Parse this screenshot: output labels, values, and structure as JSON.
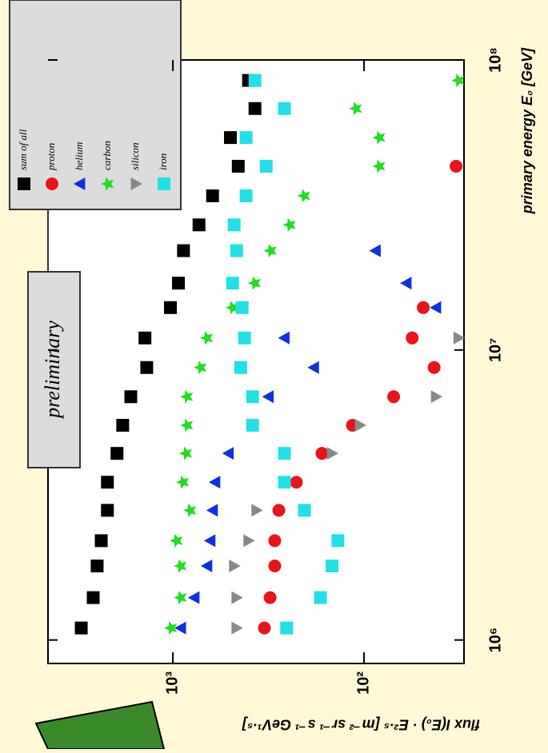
{
  "chart_data": {
    "type": "scatter",
    "x_label": "primary energy E₀ [GeV]",
    "y_label": "flux I(E₀) · E²·⁵ [m⁻² sr⁻¹ s⁻¹ GeV¹·⁵]",
    "annotation": "preliminary",
    "x_log": true,
    "y_log": true,
    "xlim": [
      830000,
      100000000
    ],
    "ylim": [
      30,
      4500
    ],
    "xticks": [
      {
        "value": 1000000,
        "label": "10⁶"
      },
      {
        "value": 10000000,
        "label": "10⁷"
      },
      {
        "value": 100000000,
        "label": "10⁸"
      }
    ],
    "yticks": [
      {
        "value": 100,
        "label": "10²"
      },
      {
        "value": 1000,
        "label": "10³"
      }
    ],
    "legend": "top-right",
    "x": [
      1100000,
      1400000,
      1800000,
      2200000,
      2800000,
      3500000,
      4400000,
      5500000,
      6900000,
      8700000,
      11000000,
      14000000,
      17000000,
      22000000,
      27000000,
      34000000,
      43000000,
      54000000,
      68000000,
      85000000
    ],
    "series": [
      {
        "name": "sum of all",
        "color": "#000000",
        "marker": "square",
        "values": [
          3015,
          2610,
          2490,
          2370,
          2200,
          2200,
          1960,
          1830,
          1660,
          1370,
          1400,
          1030,
          935,
          880,
          730,
          620,
          455,
          500,
          372,
          402
        ]
      },
      {
        "name": "proton",
        "color": "#e8141c",
        "marker": "circle",
        "values": [
          332,
          310,
          293,
          293,
          279,
          226,
          166,
          115,
          70,
          43,
          56,
          49,
          null,
          null,
          null,
          null,
          33,
          null,
          null,
          null
        ]
      },
      {
        "name": "helium",
        "color": "#1030e0",
        "marker": "triangle-up",
        "values": [
          908,
          772,
          662,
          637,
          619,
          601,
          511,
          null,
          316,
          183,
          261,
          42,
          60,
          87,
          null,
          null,
          null,
          null,
          null,
          null
        ]
      },
      {
        "name": "carbon",
        "color": "#22dd22",
        "marker": "star",
        "values": [
          1020,
          908,
          908,
          953,
          810,
          883,
          850,
          841,
          841,
          714,
          662,
          487,
          372,
          307,
          244,
          205,
          83,
          83,
          110,
          32
        ]
      },
      {
        "name": "silicon",
        "color": "#888888",
        "marker": "triangle-down",
        "values": [
          464,
          464,
          478,
          402,
          365,
          null,
          147,
          105,
          42,
          null,
          32,
          null,
          null,
          null,
          null,
          null,
          null,
          null,
          null,
          null
        ]
      },
      {
        "name": "iron",
        "color": "#22e0e8",
        "marker": "square",
        "values": [
          254,
          169,
          147,
          137,
          205,
          261,
          261,
          383,
          383,
          442,
          422,
          434,
          487,
          464,
          478,
          414,
          325,
          414,
          261,
          372
        ]
      }
    ]
  }
}
